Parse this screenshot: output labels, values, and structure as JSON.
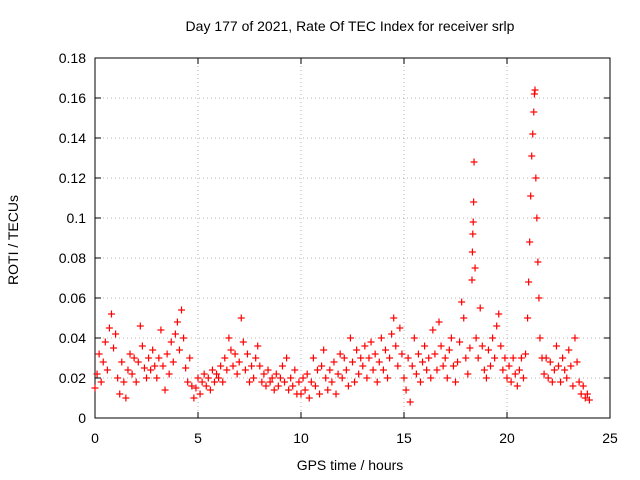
{
  "chart_data": {
    "type": "scatter",
    "title": "Day 177 of 2021, Rate Of TEC Index for receiver srlp",
    "xlabel": "GPS time / hours",
    "ylabel": "ROTI / TECUs",
    "xlim": [
      0,
      25
    ],
    "ylim": [
      0,
      0.18
    ],
    "xticks": [
      0,
      5,
      10,
      15,
      20,
      25
    ],
    "xtick_labels": [
      "0",
      "5",
      "10",
      "15",
      "20",
      "25"
    ],
    "yticks": [
      0,
      0.02,
      0.04,
      0.06,
      0.08,
      0.1,
      0.12,
      0.14,
      0.16,
      0.18
    ],
    "ytick_labels": [
      "0",
      "0.02",
      "0.04",
      "0.06",
      "0.08",
      "0.1",
      "0.12",
      "0.14",
      "0.16",
      "0.18"
    ],
    "grid": true,
    "marker": "+",
    "marker_color": "#ff0000",
    "series": [
      {
        "name": "ROTI",
        "points": [
          [
            0.0,
            0.015
          ],
          [
            0.1,
            0.022
          ],
          [
            0.2,
            0.032
          ],
          [
            0.3,
            0.018
          ],
          [
            0.4,
            0.028
          ],
          [
            0.5,
            0.038
          ],
          [
            0.6,
            0.024
          ],
          [
            0.7,
            0.045
          ],
          [
            0.8,
            0.052
          ],
          [
            0.9,
            0.035
          ],
          [
            1.0,
            0.042
          ],
          [
            1.1,
            0.02
          ],
          [
            1.2,
            0.012
          ],
          [
            1.3,
            0.028
          ],
          [
            1.4,
            0.018
          ],
          [
            1.5,
            0.01
          ],
          [
            1.6,
            0.024
          ],
          [
            1.7,
            0.032
          ],
          [
            1.8,
            0.022
          ],
          [
            1.9,
            0.03
          ],
          [
            2.0,
            0.018
          ],
          [
            2.1,
            0.028
          ],
          [
            2.2,
            0.046
          ],
          [
            2.3,
            0.036
          ],
          [
            2.4,
            0.025
          ],
          [
            2.5,
            0.02
          ],
          [
            2.6,
            0.03
          ],
          [
            2.7,
            0.024
          ],
          [
            2.8,
            0.034
          ],
          [
            2.9,
            0.026
          ],
          [
            3.0,
            0.02
          ],
          [
            3.1,
            0.03
          ],
          [
            3.2,
            0.044
          ],
          [
            3.3,
            0.026
          ],
          [
            3.4,
            0.014
          ],
          [
            3.5,
            0.032
          ],
          [
            3.6,
            0.022
          ],
          [
            3.7,
            0.038
          ],
          [
            3.8,
            0.028
          ],
          [
            3.9,
            0.042
          ],
          [
            4.0,
            0.048
          ],
          [
            4.1,
            0.034
          ],
          [
            4.2,
            0.054
          ],
          [
            4.3,
            0.04
          ],
          [
            4.4,
            0.025
          ],
          [
            4.5,
            0.018
          ],
          [
            4.6,
            0.03
          ],
          [
            4.7,
            0.016
          ],
          [
            4.8,
            0.01
          ],
          [
            4.9,
            0.015
          ],
          [
            5.0,
            0.02
          ],
          [
            5.1,
            0.012
          ],
          [
            5.2,
            0.018
          ],
          [
            5.3,
            0.022
          ],
          [
            5.4,
            0.016
          ],
          [
            5.5,
            0.02
          ],
          [
            5.6,
            0.014
          ],
          [
            5.7,
            0.024
          ],
          [
            5.8,
            0.018
          ],
          [
            5.9,
            0.022
          ],
          [
            6.0,
            0.02
          ],
          [
            6.1,
            0.026
          ],
          [
            6.2,
            0.018
          ],
          [
            6.3,
            0.03
          ],
          [
            6.4,
            0.024
          ],
          [
            6.5,
            0.04
          ],
          [
            6.6,
            0.034
          ],
          [
            6.7,
            0.026
          ],
          [
            6.8,
            0.032
          ],
          [
            6.9,
            0.022
          ],
          [
            7.0,
            0.028
          ],
          [
            7.1,
            0.05
          ],
          [
            7.2,
            0.038
          ],
          [
            7.3,
            0.024
          ],
          [
            7.4,
            0.032
          ],
          [
            7.5,
            0.018
          ],
          [
            7.6,
            0.026
          ],
          [
            7.7,
            0.02
          ],
          [
            7.8,
            0.03
          ],
          [
            7.9,
            0.036
          ],
          [
            8.0,
            0.026
          ],
          [
            8.1,
            0.018
          ],
          [
            8.2,
            0.022
          ],
          [
            8.3,
            0.016
          ],
          [
            8.4,
            0.024
          ],
          [
            8.5,
            0.018
          ],
          [
            8.6,
            0.02
          ],
          [
            8.7,
            0.014
          ],
          [
            8.8,
            0.022
          ],
          [
            8.9,
            0.016
          ],
          [
            9.0,
            0.02
          ],
          [
            9.1,
            0.026
          ],
          [
            9.2,
            0.018
          ],
          [
            9.3,
            0.03
          ],
          [
            9.4,
            0.014
          ],
          [
            9.5,
            0.02
          ],
          [
            9.6,
            0.016
          ],
          [
            9.7,
            0.024
          ],
          [
            9.8,
            0.012
          ],
          [
            9.9,
            0.018
          ],
          [
            10.0,
            0.012
          ],
          [
            10.1,
            0.02
          ],
          [
            10.2,
            0.014
          ],
          [
            10.3,
            0.022
          ],
          [
            10.4,
            0.01
          ],
          [
            10.5,
            0.018
          ],
          [
            10.6,
            0.03
          ],
          [
            10.7,
            0.016
          ],
          [
            10.8,
            0.024
          ],
          [
            10.9,
            0.012
          ],
          [
            11.0,
            0.026
          ],
          [
            11.1,
            0.034
          ],
          [
            11.2,
            0.02
          ],
          [
            11.3,
            0.014
          ],
          [
            11.4,
            0.024
          ],
          [
            11.5,
            0.018
          ],
          [
            11.6,
            0.028
          ],
          [
            11.7,
            0.012
          ],
          [
            11.8,
            0.022
          ],
          [
            11.9,
            0.032
          ],
          [
            12.0,
            0.02
          ],
          [
            12.1,
            0.03
          ],
          [
            12.2,
            0.024
          ],
          [
            12.3,
            0.016
          ],
          [
            12.4,
            0.04
          ],
          [
            12.5,
            0.028
          ],
          [
            12.6,
            0.018
          ],
          [
            12.7,
            0.034
          ],
          [
            12.8,
            0.022
          ],
          [
            12.9,
            0.03
          ],
          [
            13.0,
            0.026
          ],
          [
            13.1,
            0.036
          ],
          [
            13.2,
            0.02
          ],
          [
            13.3,
            0.03
          ],
          [
            13.4,
            0.038
          ],
          [
            13.5,
            0.024
          ],
          [
            13.6,
            0.032
          ],
          [
            13.7,
            0.018
          ],
          [
            13.8,
            0.028
          ],
          [
            13.9,
            0.04
          ],
          [
            14.0,
            0.024
          ],
          [
            14.1,
            0.034
          ],
          [
            14.2,
            0.02
          ],
          [
            14.3,
            0.03
          ],
          [
            14.4,
            0.042
          ],
          [
            14.5,
            0.05
          ],
          [
            14.6,
            0.036
          ],
          [
            14.7,
            0.026
          ],
          [
            14.8,
            0.045
          ],
          [
            14.9,
            0.032
          ],
          [
            15.0,
            0.02
          ],
          [
            15.1,
            0.014
          ],
          [
            15.2,
            0.03
          ],
          [
            15.3,
            0.008
          ],
          [
            15.4,
            0.026
          ],
          [
            15.5,
            0.04
          ],
          [
            15.6,
            0.022
          ],
          [
            15.7,
            0.032
          ],
          [
            15.8,
            0.018
          ],
          [
            15.9,
            0.028
          ],
          [
            16.0,
            0.036
          ],
          [
            16.1,
            0.024
          ],
          [
            16.2,
            0.03
          ],
          [
            16.3,
            0.02
          ],
          [
            16.4,
            0.044
          ],
          [
            16.5,
            0.032
          ],
          [
            16.6,
            0.024
          ],
          [
            16.7,
            0.048
          ],
          [
            16.8,
            0.036
          ],
          [
            16.9,
            0.026
          ],
          [
            17.0,
            0.03
          ],
          [
            17.1,
            0.02
          ],
          [
            17.2,
            0.034
          ],
          [
            17.3,
            0.04
          ],
          [
            17.4,
            0.026
          ],
          [
            17.5,
            0.018
          ],
          [
            17.6,
            0.028
          ],
          [
            17.7,
            0.038
          ],
          [
            17.8,
            0.058
          ],
          [
            17.9,
            0.05
          ],
          [
            18.0,
            0.03
          ],
          [
            18.1,
            0.022
          ],
          [
            18.2,
            0.035
          ],
          [
            18.3,
            0.069
          ],
          [
            18.32,
            0.083
          ],
          [
            18.34,
            0.092
          ],
          [
            18.36,
            0.098
          ],
          [
            18.38,
            0.108
          ],
          [
            18.4,
            0.128
          ],
          [
            18.45,
            0.075
          ],
          [
            18.5,
            0.04
          ],
          [
            18.6,
            0.03
          ],
          [
            18.7,
            0.055
          ],
          [
            18.8,
            0.036
          ],
          [
            18.9,
            0.024
          ],
          [
            19.0,
            0.02
          ],
          [
            19.1,
            0.034
          ],
          [
            19.2,
            0.026
          ],
          [
            19.3,
            0.04
          ],
          [
            19.4,
            0.03
          ],
          [
            19.5,
            0.046
          ],
          [
            19.6,
            0.052
          ],
          [
            19.7,
            0.036
          ],
          [
            19.8,
            0.024
          ],
          [
            19.9,
            0.03
          ],
          [
            20.0,
            0.02
          ],
          [
            20.1,
            0.026
          ],
          [
            20.2,
            0.018
          ],
          [
            20.3,
            0.03
          ],
          [
            20.4,
            0.022
          ],
          [
            20.5,
            0.016
          ],
          [
            20.6,
            0.024
          ],
          [
            20.7,
            0.03
          ],
          [
            20.8,
            0.02
          ],
          [
            20.9,
            0.032
          ],
          [
            21.0,
            0.05
          ],
          [
            21.05,
            0.068
          ],
          [
            21.1,
            0.088
          ],
          [
            21.15,
            0.111
          ],
          [
            21.2,
            0.131
          ],
          [
            21.25,
            0.142
          ],
          [
            21.3,
            0.153
          ],
          [
            21.33,
            0.162
          ],
          [
            21.36,
            0.164
          ],
          [
            21.4,
            0.12
          ],
          [
            21.45,
            0.1
          ],
          [
            21.5,
            0.078
          ],
          [
            21.55,
            0.06
          ],
          [
            21.6,
            0.04
          ],
          [
            21.7,
            0.03
          ],
          [
            21.8,
            0.022
          ],
          [
            21.9,
            0.03
          ],
          [
            22.0,
            0.02
          ],
          [
            22.1,
            0.028
          ],
          [
            22.2,
            0.018
          ],
          [
            22.3,
            0.024
          ],
          [
            22.4,
            0.036
          ],
          [
            22.5,
            0.026
          ],
          [
            22.6,
            0.018
          ],
          [
            22.7,
            0.03
          ],
          [
            22.8,
            0.024
          ],
          [
            22.9,
            0.02
          ],
          [
            23.0,
            0.034
          ],
          [
            23.1,
            0.026
          ],
          [
            23.2,
            0.016
          ],
          [
            23.3,
            0.04
          ],
          [
            23.4,
            0.028
          ],
          [
            23.5,
            0.018
          ],
          [
            23.6,
            0.012
          ],
          [
            23.7,
            0.016
          ],
          [
            23.8,
            0.01
          ],
          [
            23.9,
            0.012
          ],
          [
            24.0,
            0.009
          ]
        ]
      }
    ]
  }
}
